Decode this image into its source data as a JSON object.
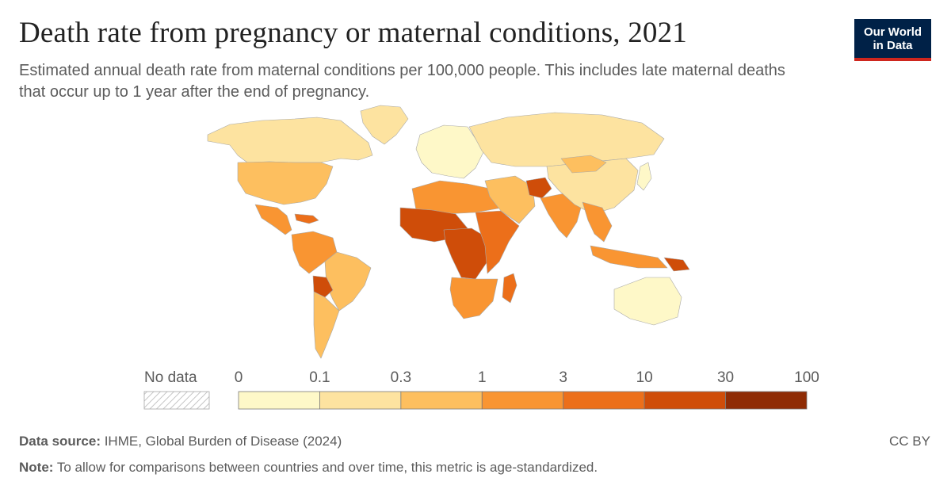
{
  "header": {
    "title": "Death rate from pregnancy or maternal conditions, 2021",
    "subtitle": "Estimated annual death rate from maternal conditions per 100,000 people. This includes late maternal deaths that occur up to 1 year after the end of pregnancy."
  },
  "logo": {
    "line1": "Our World",
    "line2": "in Data"
  },
  "legend": {
    "no_data_label": "No data",
    "bins": [
      "0",
      "0.1",
      "0.3",
      "1",
      "3",
      "10",
      "30",
      "100"
    ],
    "colors": [
      "#fef8c8",
      "#fde3a0",
      "#fdbf5f",
      "#f99532",
      "#ec6f1a",
      "#cf4d09",
      "#8f2c05"
    ]
  },
  "map_regions": [
    {
      "name": "North America",
      "color": "#fde3a0"
    },
    {
      "name": "United States",
      "color": "#fdbf5f"
    },
    {
      "name": "Greenland",
      "color": "#fde3a0"
    },
    {
      "name": "Central America",
      "color": "#f99532"
    },
    {
      "name": "Caribbean",
      "color": "#ec6f1a"
    },
    {
      "name": "South America North",
      "color": "#f99532"
    },
    {
      "name": "Brazil",
      "color": "#fdbf5f"
    },
    {
      "name": "Bolivia",
      "color": "#cf4d09"
    },
    {
      "name": "Southern Cone",
      "color": "#fdbf5f"
    },
    {
      "name": "Europe",
      "color": "#fef8c8"
    },
    {
      "name": "Russia",
      "color": "#fde3a0"
    },
    {
      "name": "North Africa",
      "color": "#f99532"
    },
    {
      "name": "West Africa",
      "color": "#cf4d09"
    },
    {
      "name": "Central Africa",
      "color": "#cf4d09"
    },
    {
      "name": "East Africa",
      "color": "#ec6f1a"
    },
    {
      "name": "Southern Africa",
      "color": "#f99532"
    },
    {
      "name": "Madagascar",
      "color": "#ec6f1a"
    },
    {
      "name": "Middle East",
      "color": "#fdbf5f"
    },
    {
      "name": "Afghanistan",
      "color": "#cf4d09"
    },
    {
      "name": "South Asia",
      "color": "#f99532"
    },
    {
      "name": "China",
      "color": "#fde3a0"
    },
    {
      "name": "Mongolia",
      "color": "#fdbf5f"
    },
    {
      "name": "Southeast Asia",
      "color": "#f99532"
    },
    {
      "name": "Indonesia",
      "color": "#f99532"
    },
    {
      "name": "Papua New Guinea",
      "color": "#cf4d09"
    },
    {
      "name": "Australia",
      "color": "#fef8c8"
    },
    {
      "name": "Japan",
      "color": "#fef8c8"
    }
  ],
  "footer": {
    "source_label": "Data source:",
    "source_text": " IHME, Global Burden of Disease (2024)",
    "note_label": "Note:",
    "note_text": " To allow for comparisons between countries and over time, this metric is age-standardized.",
    "license": "CC BY"
  }
}
